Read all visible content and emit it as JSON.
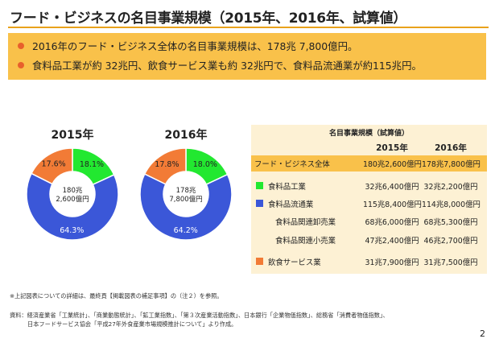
{
  "title": "フード・ビジネスの名目事業規模（2015年、2016年、試算値）",
  "summary": [
    "2016年のフード・ビジネス全体の名目事業規模は、178兆 7,800億円。",
    "食料品工業が約 32兆円、飲食サービス業も約 32兆円で、食料品流通業が約115兆円。"
  ],
  "colors": {
    "food_industry": "#22e830",
    "food_distribution": "#3b57d8",
    "food_service": "#f27b36",
    "accent": "#f9c14a",
    "table_bg": "#fdf1d4"
  },
  "chart_data": [
    {
      "type": "pie",
      "title": "2015年",
      "center_label": [
        "180兆",
        "2,600億円"
      ],
      "slices": [
        {
          "category": "食料品工業",
          "value": 18.1,
          "label": "18.1%"
        },
        {
          "category": "食料品流通業",
          "value": 64.3,
          "label": "64.3%"
        },
        {
          "category": "飲食サービス業",
          "value": 17.6,
          "label": "17.6%"
        }
      ]
    },
    {
      "type": "pie",
      "title": "2016年",
      "center_label": [
        "178兆",
        "7,800億円"
      ],
      "slices": [
        {
          "category": "食料品工業",
          "value": 18.0,
          "label": "18.0%"
        },
        {
          "category": "食料品流通業",
          "value": 64.2,
          "label": "64.2%"
        },
        {
          "category": "飲食サービス業",
          "value": 17.8,
          "label": "17.8%"
        }
      ]
    },
    {
      "type": "table",
      "title": "名目事業規模（試算値）",
      "columns": [
        "2015年",
        "2016年"
      ],
      "rows": [
        {
          "label": "フード・ビジネス全体",
          "values": [
            "180兆2,600億円",
            "178兆7,800億円"
          ],
          "highlight": true,
          "indent": 0
        },
        {
          "label": "食料品工業",
          "values": [
            "32兆6,400億円",
            "32兆2,200億円"
          ],
          "swatch": "food_industry",
          "indent": 1
        },
        {
          "label": "食料品流通業",
          "values": [
            "115兆8,400億円",
            "114兆8,000億円"
          ],
          "swatch": "food_distribution",
          "indent": 1
        },
        {
          "label": "食料品関連卸売業",
          "values": [
            "68兆6,000億円",
            "68兆5,300億円"
          ],
          "indent": 2
        },
        {
          "label": "食料品関連小売業",
          "values": [
            "47兆2,400億円",
            "46兆2,700億円"
          ],
          "indent": 2
        },
        {
          "label": "飲食サービス業",
          "values": [
            "31兆7,900億円",
            "31兆7,500億円"
          ],
          "swatch": "food_service",
          "indent": 1
        }
      ]
    }
  ],
  "note": "※上記図表についての詳細は、最終頁【掲載図表の補足事項】の（注２）を参照。",
  "source": [
    "資料：経済産業省「工業統計」、「商業動態統計」、「鉱工業指数」、「第３次産業活動指数」、日本銀行「企業物価指数」、総務省「消費者物価指数」、",
    "日本フードサービス協会「平成27年外食産業市場規模推計について」より作成。"
  ],
  "page_number": "2"
}
